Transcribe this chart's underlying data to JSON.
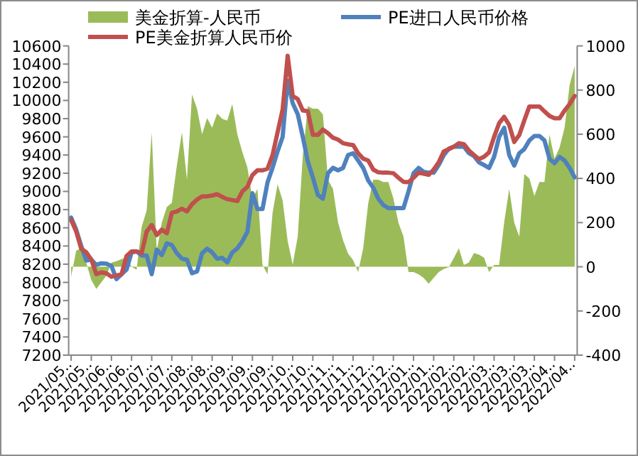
{
  "chart_data": {
    "type": "line",
    "legend": "top",
    "grid": false,
    "marker": "none",
    "line_style": "solid",
    "categories": [
      "2021/05..",
      null,
      null,
      null,
      "2021/05..",
      null,
      null,
      null,
      "2021/06..",
      null,
      null,
      null,
      "2021/06..",
      null,
      null,
      null,
      "2021/07..",
      null,
      null,
      null,
      "2021/07..",
      null,
      null,
      null,
      "2021/08..",
      null,
      null,
      null,
      "2021/08..",
      null,
      null,
      null,
      "2021/09..",
      null,
      null,
      null,
      "2021/09..",
      null,
      null,
      null,
      "2021/09..",
      null,
      null,
      null,
      "2021/10..",
      null,
      null,
      null,
      "2021/10..",
      null,
      null,
      null,
      "2021/11..",
      null,
      null,
      null,
      "2021/11..",
      null,
      null,
      null,
      "2021/12..",
      null,
      null,
      null,
      "2021/12..",
      null,
      null,
      null,
      "2022/01..",
      null,
      null,
      null,
      "2022/01..",
      null,
      null,
      null,
      "2022/02..",
      null,
      null,
      null,
      "2022/02..",
      null,
      null,
      null,
      "2022/03..",
      null,
      null,
      null,
      "2022/03..",
      null,
      null,
      null,
      "2022/03..",
      null,
      null,
      null,
      "2022/04..",
      null,
      null,
      null,
      "2022/04.."
    ],
    "ylim": [
      7200,
      10600
    ],
    "yticks": [
      7200,
      7400,
      7600,
      7800,
      8000,
      8200,
      8400,
      8600,
      8800,
      9000,
      9200,
      9400,
      9600,
      9800,
      10000,
      10200,
      10400,
      10600
    ],
    "y2lim": [
      -400,
      1000
    ],
    "y2ticks": [
      -400,
      -200,
      0,
      200,
      400,
      600,
      800,
      1000
    ],
    "series": [
      {
        "name": "美金折算-人民币",
        "type": "area",
        "axis": "y2",
        "color": "#9bbb59",
        "values": [
          -45,
          73,
          84,
          19,
          -60,
          -100,
          -70,
          -40,
          19,
          25,
          35,
          41,
          0,
          -13,
          180,
          255,
          609,
          73,
          200,
          270,
          290,
          460,
          609,
          394,
          780,
          716,
          600,
          673,
          630,
          694,
          670,
          662,
          737,
          600,
          520,
          450,
          309,
          352,
          8,
          -34,
          244,
          373,
          300,
          116,
          10,
          137,
          500,
          727,
          716,
          716,
          690,
          394,
          352,
          201,
          120,
          60,
          30,
          -24,
          84,
          287,
          394,
          394,
          384,
          384,
          309,
          200,
          137,
          -24,
          -24,
          -34,
          -50,
          -77,
          -50,
          -24,
          -10,
          -2,
          40,
          84,
          8,
          20,
          62,
          55,
          41,
          -24,
          8,
          8,
          201,
          352,
          200,
          137,
          420,
          400,
          320,
          384,
          384,
          598,
          490,
          540,
          630,
          823,
          909
        ]
      },
      {
        "name": "PE进口人民币价格",
        "type": "line",
        "color": "#4f81bd",
        "values": [
          8712,
          8580,
          8400,
          8240,
          8250,
          8192,
          8210,
          8205,
          8180,
          8036,
          8090,
          8140,
          8330,
          8340,
          8295,
          8296,
          8090,
          8360,
          8300,
          8430,
          8410,
          8320,
          8260,
          8250,
          8100,
          8120,
          8320,
          8370,
          8330,
          8260,
          8270,
          8220,
          8330,
          8374,
          8452,
          8556,
          8980,
          8806,
          8806,
          9100,
          9260,
          9440,
          9600,
          10219,
          9970,
          9850,
          9600,
          9330,
          9154,
          8960,
          8920,
          9200,
          9260,
          9232,
          9258,
          9400,
          9420,
          9340,
          9258,
          9120,
          9040,
          8920,
          8850,
          8816,
          8816,
          8816,
          8816,
          9000,
          9200,
          9258,
          9215,
          9206,
          9206,
          9290,
          9400,
          9470,
          9492,
          9492,
          9492,
          9420,
          9390,
          9320,
          9290,
          9258,
          9380,
          9600,
          9700,
          9400,
          9284,
          9420,
          9466,
          9560,
          9610,
          9610,
          9560,
          9360,
          9310,
          9380,
          9340,
          9258,
          9154
        ]
      },
      {
        "name": "PE美金折算人民币价",
        "type": "line",
        "color": "#c0504d",
        "values": [
          8686,
          8560,
          8370,
          8330,
          8250,
          8090,
          8110,
          8100,
          8062,
          8075,
          8088,
          8290,
          8340,
          8340,
          8322,
          8560,
          8630,
          8520,
          8580,
          8540,
          8764,
          8780,
          8810,
          8780,
          8860,
          8910,
          8946,
          8946,
          8955,
          8970,
          8940,
          8915,
          8905,
          8894,
          9000,
          9050,
          9180,
          9232,
          9232,
          9250,
          9400,
          9650,
          9900,
          10491,
          10050,
          10015,
          9890,
          9882,
          9622,
          9622,
          9680,
          9640,
          9590,
          9570,
          9530,
          9518,
          9510,
          9420,
          9360,
          9340,
          9240,
          9210,
          9206,
          9206,
          9200,
          9150,
          9105,
          9102,
          9150,
          9206,
          9195,
          9182,
          9240,
          9320,
          9440,
          9465,
          9492,
          9530,
          9520,
          9450,
          9400,
          9355,
          9380,
          9430,
          9600,
          9750,
          9820,
          9730,
          9544,
          9620,
          9780,
          9934,
          9934,
          9934,
          9880,
          9830,
          9804,
          9804,
          9890,
          9960,
          10050
        ]
      }
    ]
  }
}
